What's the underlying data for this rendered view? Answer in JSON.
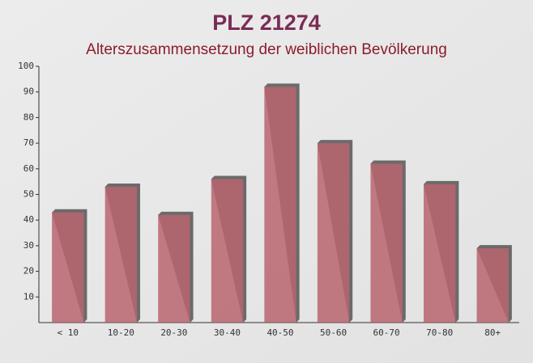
{
  "chart_data": {
    "type": "bar",
    "title": "PLZ 21274",
    "subtitle": "Alterszusammensetzung der weiblichen Bevölkerung",
    "categories": [
      "< 10",
      "10-20",
      "20-30",
      "30-40",
      "40-50",
      "50-60",
      "60-70",
      "70-80",
      "80+"
    ],
    "values": [
      43,
      53,
      42,
      56,
      92,
      70,
      62,
      54,
      29
    ],
    "color": "#b9646e",
    "ylim": [
      0,
      100
    ],
    "yticks": [
      10,
      20,
      30,
      40,
      50,
      60,
      70,
      80,
      90,
      100
    ],
    "grid": false
  }
}
